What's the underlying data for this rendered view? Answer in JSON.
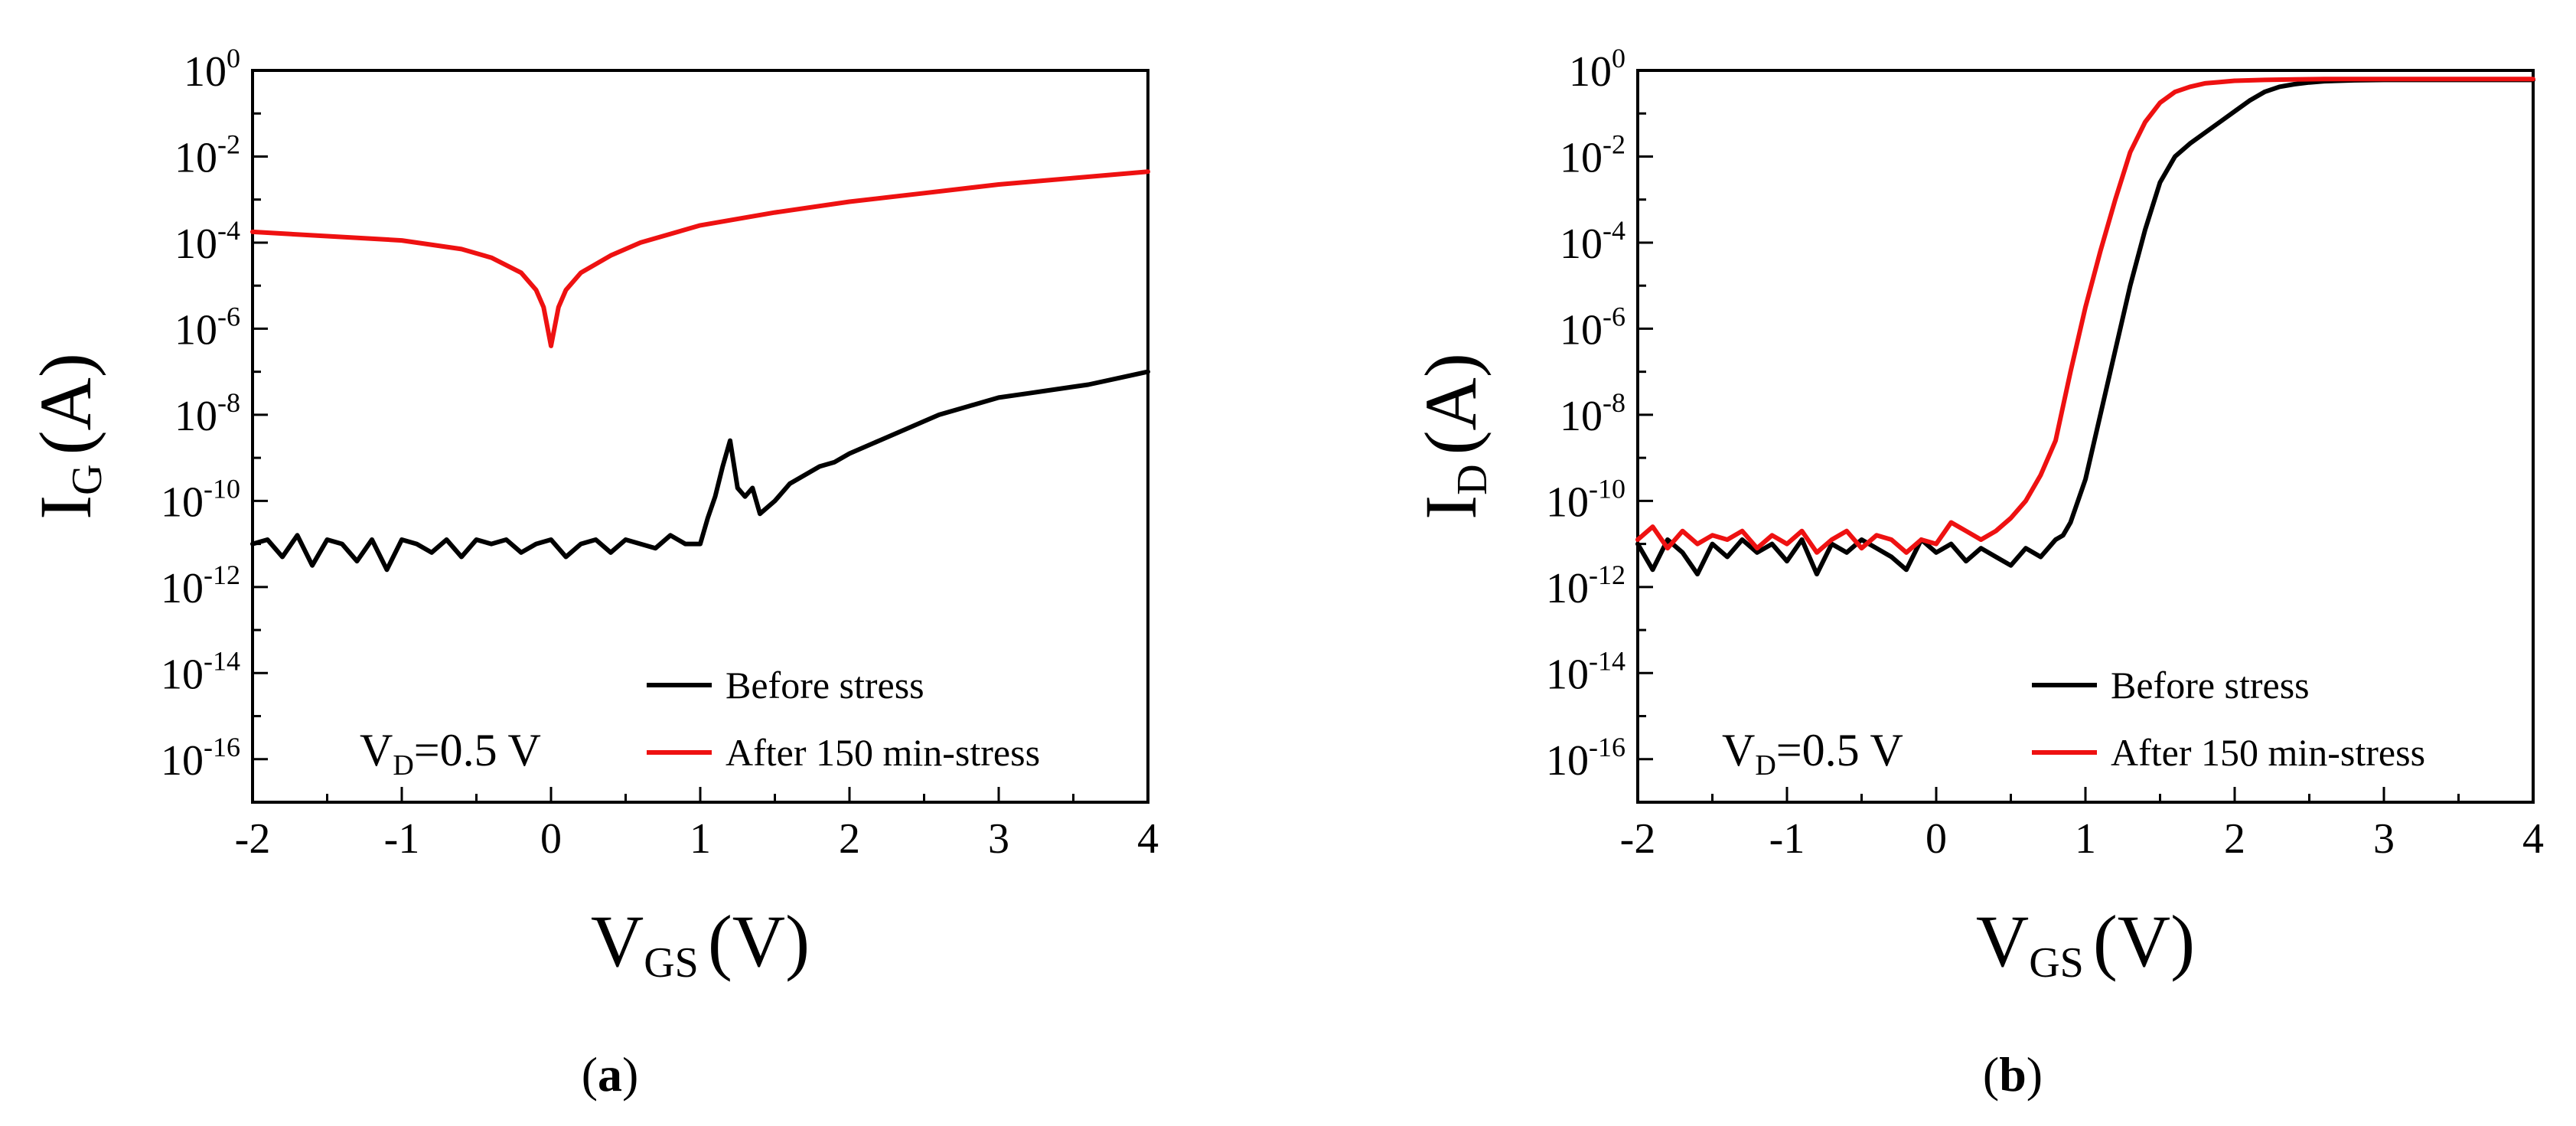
{
  "chart_data": [
    {
      "type": "line",
      "panel_label": "a",
      "xlabel": {
        "main": "V",
        "sub": "GS",
        "unit": "(V)"
      },
      "ylabel": {
        "main": "I",
        "sub": "G",
        "unit": "(A)"
      },
      "xlim": [
        -2,
        4
      ],
      "ylim_log10": [
        -17,
        0
      ],
      "x_ticks": [
        "-2",
        "-1",
        "0",
        "1",
        "2",
        "3",
        "4"
      ],
      "y_tick_base": "10",
      "y_tick_exponents": [
        "0",
        "-2",
        "-4",
        "-6",
        "-8",
        "-10",
        "-12",
        "-14",
        "-16"
      ],
      "annotation": {
        "main": "V",
        "sub": "D",
        "rest": "=0.5 V"
      },
      "legend_position": "bottom-right",
      "series": [
        {
          "name": "Before stress",
          "color": "#000000",
          "x": [
            -2.0,
            -1.9,
            -1.8,
            -1.7,
            -1.6,
            -1.5,
            -1.4,
            -1.3,
            -1.2,
            -1.1,
            -1.0,
            -0.9,
            -0.8,
            -0.7,
            -0.6,
            -0.5,
            -0.4,
            -0.3,
            -0.2,
            -0.1,
            0.0,
            0.1,
            0.2,
            0.3,
            0.4,
            0.5,
            0.6,
            0.7,
            0.8,
            0.9,
            1.0,
            1.05,
            1.1,
            1.15,
            1.2,
            1.25,
            1.3,
            1.35,
            1.4,
            1.5,
            1.6,
            1.7,
            1.8,
            1.9,
            2.0,
            2.2,
            2.4,
            2.6,
            2.8,
            3.0,
            3.2,
            3.4,
            3.6,
            3.8,
            4.0
          ],
          "log10_y": [
            -11.0,
            -10.9,
            -11.3,
            -10.8,
            -11.5,
            -10.9,
            -11.0,
            -11.4,
            -10.9,
            -11.6,
            -10.9,
            -11.0,
            -11.2,
            -10.9,
            -11.3,
            -10.9,
            -11.0,
            -10.9,
            -11.2,
            -11.0,
            -10.9,
            -11.3,
            -11.0,
            -10.9,
            -11.2,
            -10.9,
            -11.0,
            -11.1,
            -10.8,
            -11.0,
            -11.0,
            -10.4,
            -9.9,
            -9.2,
            -8.6,
            -9.7,
            -9.9,
            -9.7,
            -10.3,
            -10.0,
            -9.6,
            -9.4,
            -9.2,
            -9.1,
            -8.9,
            -8.6,
            -8.3,
            -8.0,
            -7.8,
            -7.6,
            -7.5,
            -7.4,
            -7.3,
            -7.15,
            -7.0
          ]
        },
        {
          "name": "After 150 min-stress",
          "color": "#ee1111",
          "x": [
            -2.0,
            -1.5,
            -1.0,
            -0.6,
            -0.4,
            -0.2,
            -0.1,
            -0.05,
            0.0,
            0.05,
            0.1,
            0.2,
            0.4,
            0.6,
            1.0,
            1.5,
            2.0,
            2.5,
            3.0,
            3.5,
            4.0
          ],
          "log10_y": [
            -3.75,
            -3.85,
            -3.95,
            -4.15,
            -4.35,
            -4.7,
            -5.1,
            -5.5,
            -6.4,
            -5.5,
            -5.1,
            -4.7,
            -4.3,
            -4.0,
            -3.6,
            -3.3,
            -3.05,
            -2.85,
            -2.65,
            -2.5,
            -2.35
          ]
        }
      ]
    },
    {
      "type": "line",
      "panel_label": "b",
      "xlabel": {
        "main": "V",
        "sub": "GS",
        "unit": "(V)"
      },
      "ylabel": {
        "main": "I",
        "sub": "D",
        "unit": "(A)"
      },
      "xlim": [
        -2,
        4
      ],
      "ylim_log10": [
        -17,
        0
      ],
      "x_ticks": [
        "-2",
        "-1",
        "0",
        "1",
        "2",
        "3",
        "4"
      ],
      "y_tick_base": "10",
      "y_tick_exponents": [
        "0",
        "-2",
        "-4",
        "-6",
        "-8",
        "-10",
        "-12",
        "-14",
        "-16"
      ],
      "annotation": {
        "main": "V",
        "sub": "D",
        "rest": "=0.5 V"
      },
      "legend_position": "bottom-right",
      "series": [
        {
          "name": "Before stress",
          "color": "#000000",
          "x": [
            -2.0,
            -1.9,
            -1.8,
            -1.7,
            -1.6,
            -1.5,
            -1.4,
            -1.3,
            -1.2,
            -1.1,
            -1.0,
            -0.9,
            -0.8,
            -0.7,
            -0.6,
            -0.5,
            -0.4,
            -0.3,
            -0.2,
            -0.1,
            0.0,
            0.1,
            0.2,
            0.3,
            0.4,
            0.5,
            0.6,
            0.7,
            0.8,
            0.85,
            0.9,
            1.0,
            1.1,
            1.2,
            1.3,
            1.4,
            1.5,
            1.6,
            1.7,
            1.8,
            1.9,
            2.0,
            2.1,
            2.2,
            2.3,
            2.4,
            2.5,
            2.6,
            2.8,
            3.0,
            3.5,
            4.0
          ],
          "log10_y": [
            -11.0,
            -11.6,
            -10.9,
            -11.2,
            -11.7,
            -11.0,
            -11.3,
            -10.9,
            -11.2,
            -11.0,
            -11.4,
            -10.9,
            -11.7,
            -11.0,
            -11.2,
            -10.9,
            -11.1,
            -11.3,
            -11.6,
            -10.9,
            -11.2,
            -11.0,
            -11.4,
            -11.1,
            -11.3,
            -11.5,
            -11.1,
            -11.3,
            -10.9,
            -10.8,
            -10.5,
            -9.5,
            -8.0,
            -6.5,
            -5.0,
            -3.7,
            -2.6,
            -2.0,
            -1.7,
            -1.45,
            -1.2,
            -0.95,
            -0.7,
            -0.5,
            -0.38,
            -0.32,
            -0.28,
            -0.25,
            -0.23,
            -0.22,
            -0.22,
            -0.22
          ]
        },
        {
          "name": "After 150 min-stress",
          "color": "#ee1111",
          "x": [
            -2.0,
            -1.9,
            -1.8,
            -1.7,
            -1.6,
            -1.5,
            -1.4,
            -1.3,
            -1.2,
            -1.1,
            -1.0,
            -0.9,
            -0.8,
            -0.7,
            -0.6,
            -0.5,
            -0.4,
            -0.3,
            -0.2,
            -0.1,
            0.0,
            0.1,
            0.15,
            0.2,
            0.3,
            0.4,
            0.5,
            0.6,
            0.7,
            0.8,
            0.9,
            1.0,
            1.1,
            1.2,
            1.3,
            1.4,
            1.5,
            1.6,
            1.7,
            1.8,
            1.9,
            2.0,
            2.2,
            2.4,
            2.6,
            3.0,
            3.5,
            4.0
          ],
          "log10_y": [
            -10.9,
            -10.6,
            -11.1,
            -10.7,
            -11.0,
            -10.8,
            -10.9,
            -10.7,
            -11.1,
            -10.8,
            -11.0,
            -10.7,
            -11.2,
            -10.9,
            -10.7,
            -11.1,
            -10.8,
            -10.9,
            -11.2,
            -10.9,
            -11.0,
            -10.5,
            -10.6,
            -10.7,
            -10.9,
            -10.7,
            -10.4,
            -10.0,
            -9.4,
            -8.6,
            -7.0,
            -5.5,
            -4.2,
            -3.0,
            -1.9,
            -1.2,
            -0.75,
            -0.5,
            -0.38,
            -0.3,
            -0.27,
            -0.24,
            -0.22,
            -0.21,
            -0.2,
            -0.2,
            -0.2,
            -0.2
          ]
        }
      ]
    }
  ]
}
